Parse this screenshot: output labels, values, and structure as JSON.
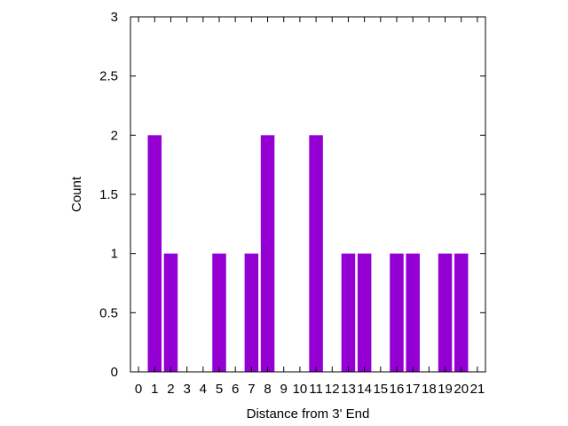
{
  "chart_data": {
    "type": "bar",
    "categories": [
      "0",
      "1",
      "2",
      "3",
      "4",
      "5",
      "6",
      "7",
      "8",
      "9",
      "10",
      "11",
      "12",
      "13",
      "14",
      "15",
      "16",
      "17",
      "18",
      "19",
      "20",
      "21"
    ],
    "values": [
      0,
      2,
      1,
      0,
      0,
      1,
      0,
      1,
      2,
      0,
      0,
      2,
      0,
      1,
      1,
      0,
      1,
      1,
      0,
      1,
      1,
      0
    ],
    "xlabel": "Distance from 3' End",
    "ylabel": "Count",
    "ylim": [
      0,
      3
    ],
    "yticks": [
      "0",
      "0.5",
      "1",
      "1.5",
      "2",
      "2.5",
      "3"
    ],
    "grid": false,
    "bar_color": "#9400d3"
  }
}
